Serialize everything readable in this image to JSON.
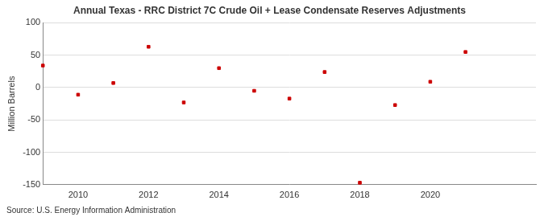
{
  "chart_data": {
    "type": "scatter",
    "title": "Annual Texas - RRC District 7C Crude Oil + Lease Condensate Reserves Adjustments",
    "y_label": "Million Barrels",
    "source": "Source: U.S. Energy Information Administration",
    "x": [
      2009,
      2010,
      2011,
      2012,
      2013,
      2014,
      2015,
      2016,
      2017,
      2018,
      2019,
      2020,
      2021
    ],
    "values": [
      34,
      -11,
      7,
      63,
      -23,
      30,
      -5,
      -17,
      24,
      -147,
      -27,
      9,
      55
    ],
    "color": "#cc0000",
    "marker": "square",
    "xlim": [
      2009,
      2023
    ],
    "xticks": [
      2010,
      2012,
      2014,
      2016,
      2018,
      2020
    ],
    "ylim": [
      -150,
      100
    ],
    "yticks": [
      -150,
      -100,
      -50,
      0,
      50,
      100
    ],
    "grid": true
  }
}
